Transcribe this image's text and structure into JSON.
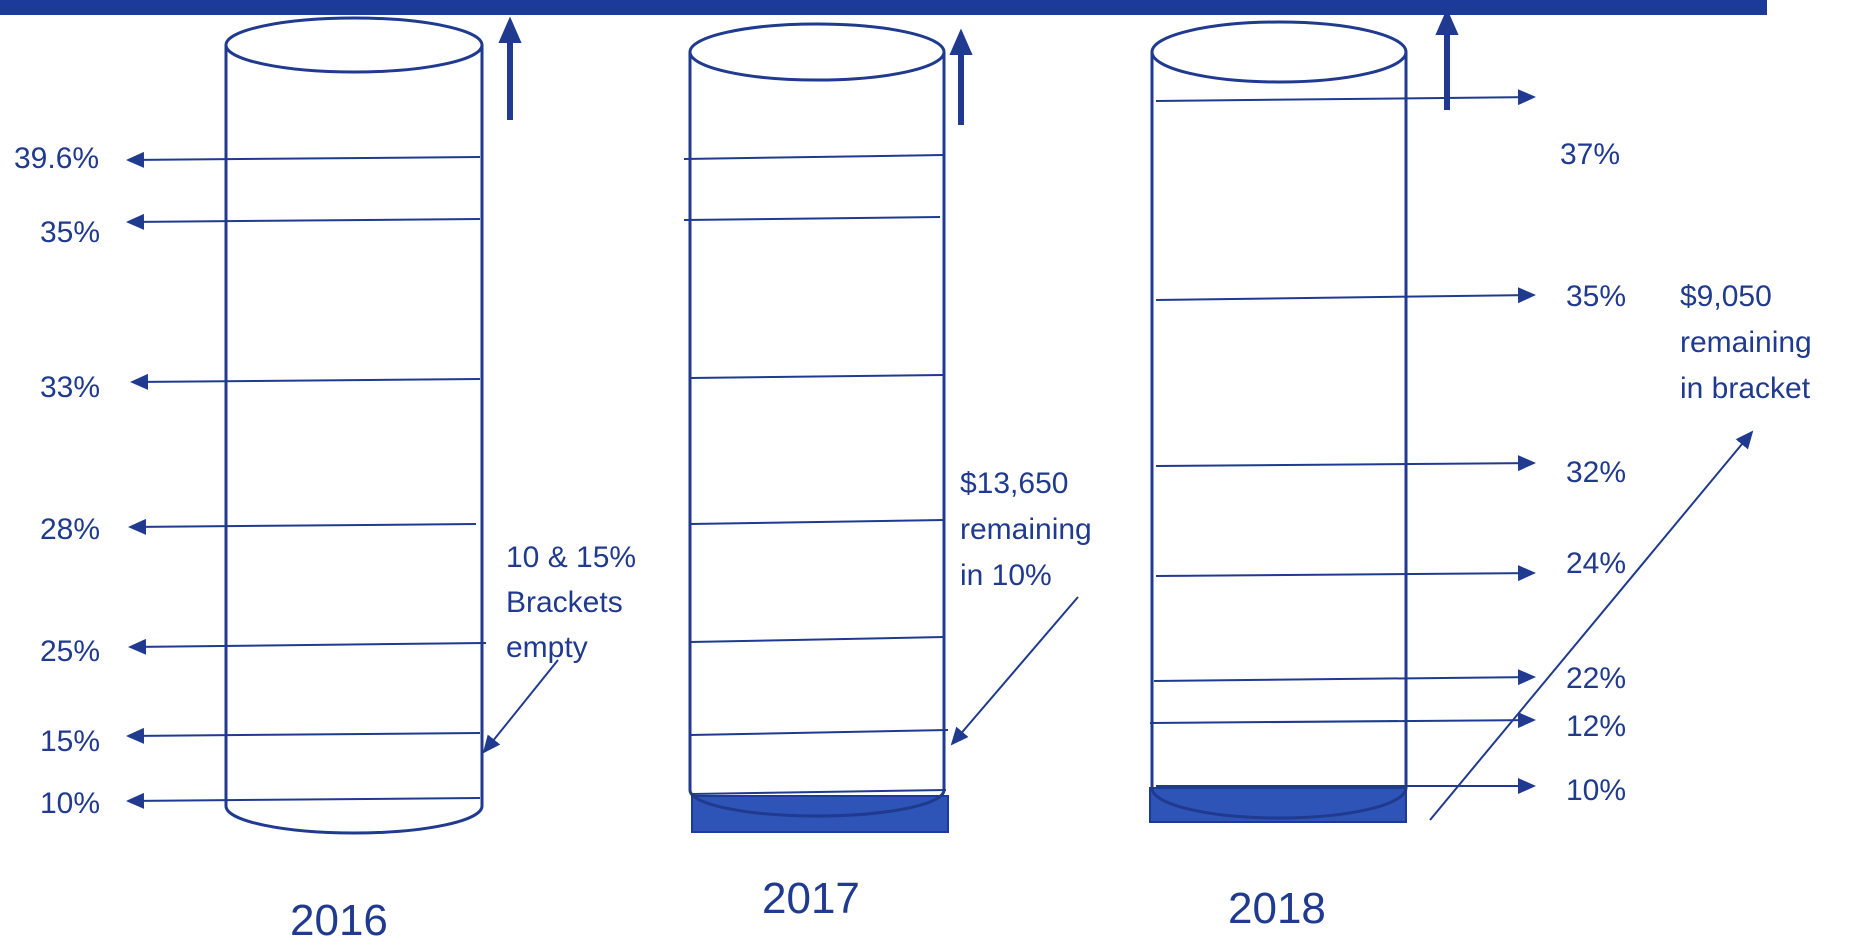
{
  "colors": {
    "accent": "#1b3a9a",
    "line": "#1f3a8f",
    "fill": "#2f54b8"
  },
  "years": {
    "y2016": "2016",
    "y2017": "2017",
    "y2018": "2018"
  },
  "rates_2016": [
    "39.6%",
    "35%",
    "33%",
    "28%",
    "25%",
    "15%",
    "10%"
  ],
  "rates_2018": [
    "37%",
    "35%",
    "32%",
    "24%",
    "22%",
    "12%",
    "10%"
  ],
  "notes": {
    "n2016": [
      "10 & 15%",
      "Brackets",
      "empty"
    ],
    "n2017": [
      "$13,650",
      "remaining",
      "in 10%"
    ],
    "n2018": [
      "$9,050",
      "remaining",
      "in bracket"
    ]
  }
}
